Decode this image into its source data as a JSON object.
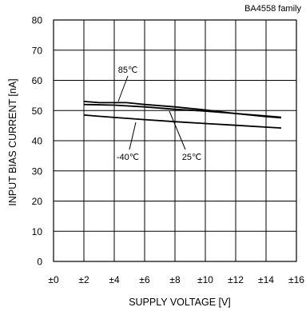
{
  "chart_data": {
    "type": "line",
    "title": "",
    "family_label": "BA4558  family",
    "xlabel": "SUPPLY VOLTAGE [V]",
    "ylabel": "INPUT BIAS CURRENT [nA]",
    "xlim": [
      0,
      16
    ],
    "ylim": [
      0,
      80
    ],
    "x_ticks": [
      0,
      2,
      4,
      6,
      8,
      10,
      12,
      14,
      16
    ],
    "x_tick_labels": [
      "±0",
      "±2",
      "±4",
      "±6",
      "±8",
      "±10",
      "±12",
      "±14",
      "±16"
    ],
    "y_ticks": [
      0,
      10,
      20,
      30,
      40,
      50,
      60,
      70,
      80
    ],
    "y_tick_labels": [
      "0",
      "10",
      "20",
      "30",
      "40",
      "50",
      "60",
      "70",
      "80"
    ],
    "grid": true,
    "series": [
      {
        "name": "85℃",
        "x": [
          2,
          3,
          4,
          4.8,
          6,
          8,
          10,
          12,
          14,
          15
        ],
        "y": [
          53,
          52.6,
          52.6,
          52.6,
          52,
          51.2,
          50.2,
          49,
          48.2,
          47.8
        ]
      },
      {
        "name": "25℃",
        "x": [
          2,
          4,
          6,
          8,
          10,
          12,
          14,
          15
        ],
        "y": [
          52,
          51.8,
          51.2,
          50.4,
          49.8,
          49,
          48,
          47.6
        ]
      },
      {
        "name": "-40℃",
        "x": [
          2,
          4,
          6,
          8,
          10,
          12,
          14,
          15
        ],
        "y": [
          48.5,
          47.7,
          47,
          46.3,
          45.7,
          45.1,
          44.5,
          44.2
        ]
      }
    ]
  }
}
